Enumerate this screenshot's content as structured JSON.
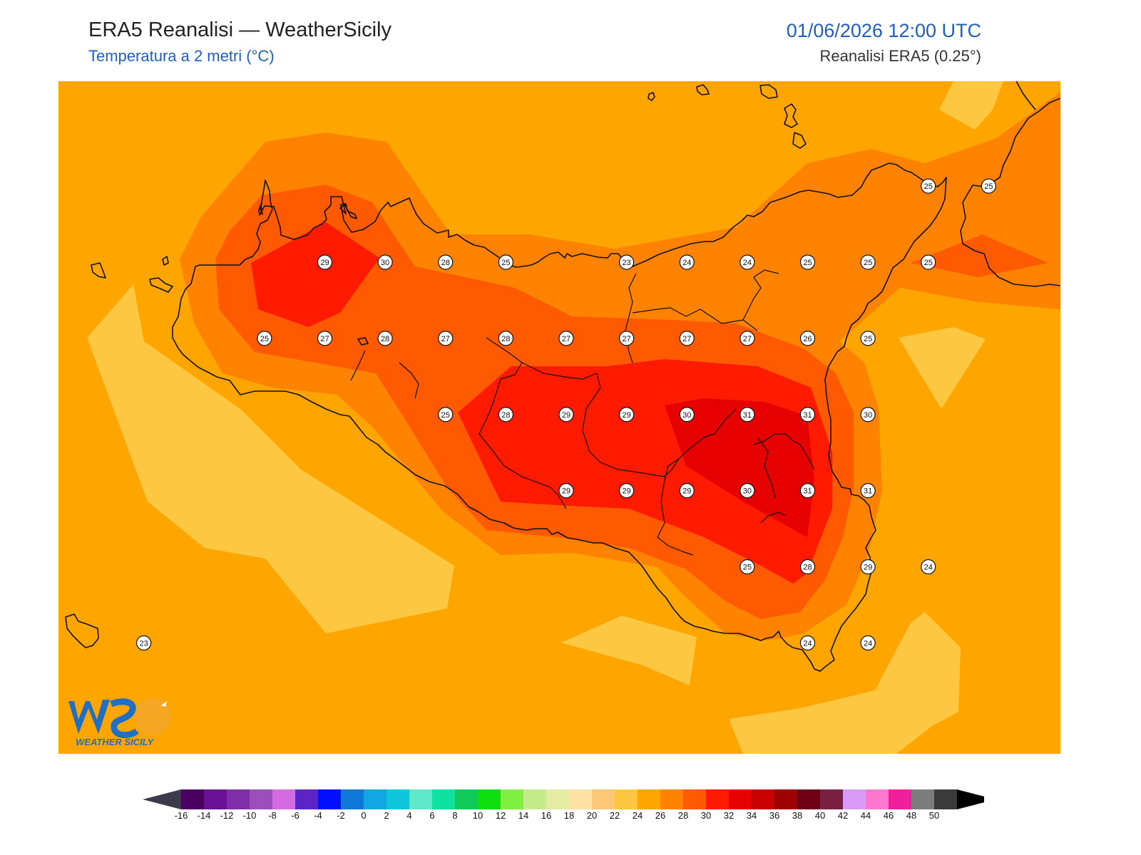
{
  "header": {
    "title": "ERA5 Reanalisi — WeatherSicily",
    "subtitle": "Temperatura a 2 metri (°C)",
    "datetime": "01/06/2026 12:00 UTC",
    "source": "Reanalisi ERA5 (0.25°)"
  },
  "logo": {
    "text": "WEATHER SICILY",
    "mark": "WS"
  },
  "colors": {
    "t20": "#fdc742",
    "t22": "#ffa500",
    "t24": "#ff8300",
    "t26": "#ff5a00",
    "t28": "#ff1a00",
    "t30": "#e60000",
    "coast": "#111111"
  },
  "map_labels": [
    {
      "lon": 12.5,
      "lat": 38.2,
      "value": "29"
    },
    {
      "lon": 12.75,
      "lat": 38.2,
      "value": "30"
    },
    {
      "lon": 13.0,
      "lat": 38.2,
      "value": "28"
    },
    {
      "lon": 13.25,
      "lat": 38.2,
      "value": "25"
    },
    {
      "lon": 13.75,
      "lat": 38.2,
      "value": "23"
    },
    {
      "lon": 14.0,
      "lat": 38.2,
      "value": "24"
    },
    {
      "lon": 14.25,
      "lat": 38.2,
      "value": "24"
    },
    {
      "lon": 14.5,
      "lat": 38.2,
      "value": "25"
    },
    {
      "lon": 14.75,
      "lat": 38.2,
      "value": "25"
    },
    {
      "lon": 15.0,
      "lat": 38.2,
      "value": "25"
    },
    {
      "lon": 15.0,
      "lat": 38.45,
      "value": "25"
    },
    {
      "lon": 15.25,
      "lat": 38.45,
      "value": "25"
    },
    {
      "lon": 12.25,
      "lat": 37.95,
      "value": "25"
    },
    {
      "lon": 12.5,
      "lat": 37.95,
      "value": "27"
    },
    {
      "lon": 12.75,
      "lat": 37.95,
      "value": "28"
    },
    {
      "lon": 13.0,
      "lat": 37.95,
      "value": "27"
    },
    {
      "lon": 13.25,
      "lat": 37.95,
      "value": "28"
    },
    {
      "lon": 13.5,
      "lat": 37.95,
      "value": "27"
    },
    {
      "lon": 13.75,
      "lat": 37.95,
      "value": "27"
    },
    {
      "lon": 14.0,
      "lat": 37.95,
      "value": "27"
    },
    {
      "lon": 14.25,
      "lat": 37.95,
      "value": "27"
    },
    {
      "lon": 14.5,
      "lat": 37.95,
      "value": "26"
    },
    {
      "lon": 14.75,
      "lat": 37.95,
      "value": "25"
    },
    {
      "lon": 13.0,
      "lat": 37.7,
      "value": "25"
    },
    {
      "lon": 13.25,
      "lat": 37.7,
      "value": "28"
    },
    {
      "lon": 13.5,
      "lat": 37.7,
      "value": "29"
    },
    {
      "lon": 13.75,
      "lat": 37.7,
      "value": "29"
    },
    {
      "lon": 14.0,
      "lat": 37.7,
      "value": "30"
    },
    {
      "lon": 14.25,
      "lat": 37.7,
      "value": "31"
    },
    {
      "lon": 14.5,
      "lat": 37.7,
      "value": "31"
    },
    {
      "lon": 14.75,
      "lat": 37.7,
      "value": "30"
    },
    {
      "lon": 13.5,
      "lat": 37.45,
      "value": "29"
    },
    {
      "lon": 13.75,
      "lat": 37.45,
      "value": "29"
    },
    {
      "lon": 14.0,
      "lat": 37.45,
      "value": "29"
    },
    {
      "lon": 14.25,
      "lat": 37.45,
      "value": "30"
    },
    {
      "lon": 14.5,
      "lat": 37.45,
      "value": "31"
    },
    {
      "lon": 14.75,
      "lat": 37.45,
      "value": "31"
    },
    {
      "lon": 14.25,
      "lat": 37.2,
      "value": "25"
    },
    {
      "lon": 14.5,
      "lat": 37.2,
      "value": "28"
    },
    {
      "lon": 14.75,
      "lat": 37.2,
      "value": "29"
    },
    {
      "lon": 15.0,
      "lat": 37.2,
      "value": "24"
    },
    {
      "lon": 14.5,
      "lat": 36.95,
      "value": "24"
    },
    {
      "lon": 14.75,
      "lat": 36.95,
      "value": "24"
    },
    {
      "lon": 11.75,
      "lat": 36.95,
      "value": "23"
    }
  ],
  "colorbar": {
    "ticks": [
      "-16",
      "-14",
      "-12",
      "-10",
      "-8",
      "-6",
      "-4",
      "-2",
      "0",
      "2",
      "4",
      "6",
      "8",
      "10",
      "12",
      "14",
      "16",
      "18",
      "20",
      "22",
      "24",
      "26",
      "28",
      "30",
      "32",
      "34",
      "36",
      "38",
      "40",
      "42",
      "44",
      "46",
      "48",
      "50"
    ],
    "colors": [
      "#4a0060",
      "#6a1196",
      "#7f2da8",
      "#9b4fba",
      "#d56be0",
      "#5c24c4",
      "#0010ff",
      "#1078d8",
      "#12a6e4",
      "#0ec6dc",
      "#5ee8cc",
      "#10e0a0",
      "#10c85c",
      "#10e010",
      "#80f040",
      "#c4ec8c",
      "#e4eca4",
      "#fde2a4",
      "#fcc878",
      "#fdc742",
      "#ffa500",
      "#ff8300",
      "#ff5a00",
      "#ff1a00",
      "#e60000",
      "#c80000",
      "#a00000",
      "#700018",
      "#7a2040",
      "#d89cf8",
      "#ff78d0",
      "#f0209c",
      "#7c7c7c",
      "#3a3a3a"
    ],
    "under_color": "#3a3a4a",
    "over_color": "#000000"
  }
}
